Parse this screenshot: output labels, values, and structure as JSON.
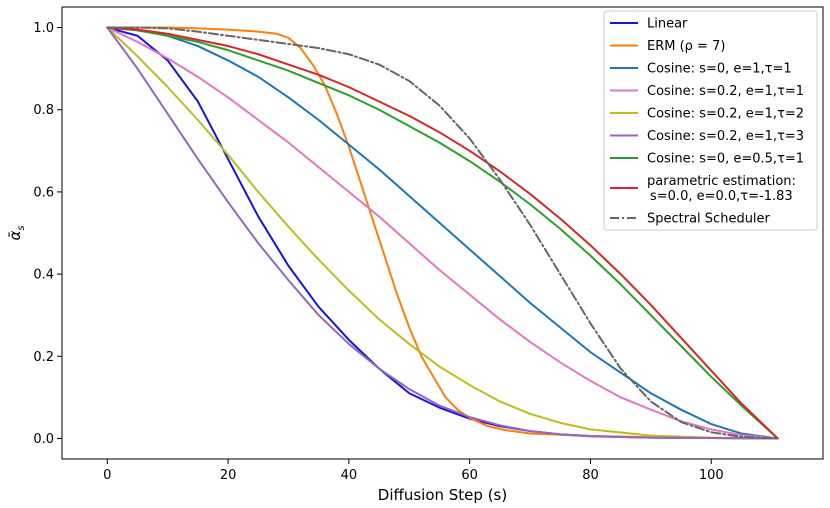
{
  "chart_data": {
    "type": "line",
    "title": "",
    "xlabel": "Diffusion Step (s)",
    "ylabel_main": "ᾱ",
    "ylabel_sub": "s",
    "xlim": [
      -7.5,
      118.5
    ],
    "ylim": [
      -0.05,
      1.05
    ],
    "xticks": [
      0,
      20,
      40,
      60,
      80,
      100
    ],
    "yticks": [
      0.0,
      0.2,
      0.4,
      0.6,
      0.8,
      1.0
    ],
    "xtick_labels": [
      "0",
      "20",
      "40",
      "60",
      "80",
      "100"
    ],
    "ytick_labels": [
      "0.0",
      "0.2",
      "0.4",
      "0.6",
      "0.8",
      "1.0"
    ],
    "legend_position": "top-right",
    "series": [
      {
        "name": "Linear",
        "legend_lines": [
          "Linear"
        ],
        "color": "#1515e0",
        "dash": "solid",
        "x": [
          0,
          5,
          10,
          15,
          20,
          25,
          30,
          35,
          40,
          45,
          50,
          55,
          60,
          65,
          70,
          75,
          80,
          90,
          100,
          111
        ],
        "y": [
          1.0,
          0.98,
          0.92,
          0.82,
          0.68,
          0.54,
          0.42,
          0.32,
          0.24,
          0.17,
          0.11,
          0.075,
          0.048,
          0.03,
          0.018,
          0.01,
          0.006,
          0.002,
          0.001,
          0.0
        ]
      },
      {
        "name": "ERM (ρ = 7)",
        "legend_lines": [
          "ERM (ρ = 7)"
        ],
        "color": "#ff7f0e",
        "dash": "solid",
        "x": [
          0,
          5,
          10,
          15,
          20,
          25,
          28,
          30,
          32,
          34,
          36,
          38,
          40,
          42,
          44,
          46,
          48,
          50,
          52,
          54,
          56,
          58,
          60,
          63,
          66,
          70,
          80,
          90,
          100,
          111
        ],
        "y": [
          1.0,
          1.0,
          1.0,
          0.998,
          0.995,
          0.99,
          0.985,
          0.975,
          0.95,
          0.91,
          0.86,
          0.79,
          0.71,
          0.62,
          0.53,
          0.44,
          0.35,
          0.27,
          0.2,
          0.15,
          0.1,
          0.07,
          0.05,
          0.03,
          0.02,
          0.012,
          0.006,
          0.003,
          0.001,
          0.0
        ]
      },
      {
        "name": "Cosine: s=0, e=1,τ=1",
        "legend_lines": [
          "Cosine: s=0, e=1,τ=1"
        ],
        "color": "#1f77b4",
        "dash": "solid",
        "x": [
          0,
          5,
          10,
          15,
          20,
          25,
          30,
          35,
          40,
          45,
          50,
          55,
          60,
          65,
          70,
          75,
          80,
          85,
          90,
          95,
          100,
          105,
          111
        ],
        "y": [
          1.0,
          0.995,
          0.98,
          0.955,
          0.92,
          0.88,
          0.83,
          0.775,
          0.715,
          0.655,
          0.59,
          0.525,
          0.46,
          0.395,
          0.33,
          0.27,
          0.21,
          0.16,
          0.11,
          0.07,
          0.035,
          0.012,
          0.0
        ]
      },
      {
        "name": "Cosine: s=0.2, e=1,τ=1",
        "legend_lines": [
          "Cosine: s=0.2, e=1,τ=1"
        ],
        "color": "#e377c2",
        "dash": "solid",
        "x": [
          0,
          5,
          10,
          15,
          20,
          25,
          30,
          35,
          40,
          45,
          50,
          55,
          60,
          65,
          70,
          75,
          80,
          85,
          90,
          95,
          100,
          105,
          111
        ],
        "y": [
          1.0,
          0.965,
          0.925,
          0.88,
          0.83,
          0.775,
          0.72,
          0.66,
          0.6,
          0.54,
          0.475,
          0.41,
          0.35,
          0.29,
          0.235,
          0.185,
          0.14,
          0.1,
          0.07,
          0.042,
          0.022,
          0.008,
          0.0
        ]
      },
      {
        "name": "Cosine: s=0.2, e=1,τ=2",
        "legend_lines": [
          "Cosine: s=0.2, e=1,τ=2"
        ],
        "color": "#bcbd22",
        "dash": "solid",
        "x": [
          0,
          5,
          10,
          15,
          20,
          25,
          30,
          35,
          40,
          45,
          50,
          55,
          60,
          65,
          70,
          75,
          80,
          90,
          100,
          111
        ],
        "y": [
          1.0,
          0.93,
          0.855,
          0.775,
          0.69,
          0.6,
          0.515,
          0.435,
          0.36,
          0.29,
          0.23,
          0.175,
          0.13,
          0.09,
          0.06,
          0.038,
          0.022,
          0.007,
          0.002,
          0.0
        ]
      },
      {
        "name": "Cosine: s=0.2, e=1,τ=3",
        "legend_lines": [
          "Cosine: s=0.2, e=1,τ=3"
        ],
        "color": "#9467bd",
        "dash": "solid",
        "x": [
          0,
          5,
          10,
          15,
          20,
          25,
          30,
          35,
          40,
          45,
          50,
          55,
          60,
          65,
          70,
          75,
          80,
          90,
          100,
          111
        ],
        "y": [
          1.0,
          0.9,
          0.79,
          0.68,
          0.575,
          0.475,
          0.385,
          0.3,
          0.23,
          0.17,
          0.12,
          0.08,
          0.052,
          0.032,
          0.018,
          0.01,
          0.005,
          0.002,
          0.001,
          0.0
        ]
      },
      {
        "name": "Cosine: s=0, e=0.5,τ=1",
        "legend_lines": [
          "Cosine: s=0, e=0.5,τ=1"
        ],
        "color": "#2ca02c",
        "dash": "solid",
        "x": [
          0,
          5,
          10,
          15,
          20,
          25,
          30,
          35,
          40,
          45,
          50,
          55,
          60,
          65,
          70,
          75,
          80,
          85,
          90,
          95,
          100,
          105,
          111
        ],
        "y": [
          1.0,
          0.993,
          0.98,
          0.965,
          0.945,
          0.92,
          0.895,
          0.865,
          0.835,
          0.8,
          0.76,
          0.72,
          0.675,
          0.625,
          0.57,
          0.51,
          0.445,
          0.375,
          0.3,
          0.225,
          0.15,
          0.08,
          0.0
        ]
      },
      {
        "name": "parametric estimation: s=0.0, e=0.0,τ=-1.83",
        "legend_lines": [
          "parametric estimation:",
          "s=0.0, e=0.0,τ=-1.83"
        ],
        "color": "#d62728",
        "dash": "solid",
        "x": [
          0,
          5,
          10,
          15,
          20,
          25,
          30,
          35,
          40,
          45,
          50,
          55,
          60,
          65,
          70,
          75,
          80,
          85,
          90,
          95,
          100,
          105,
          111
        ],
        "y": [
          1.0,
          0.995,
          0.985,
          0.97,
          0.955,
          0.935,
          0.91,
          0.885,
          0.855,
          0.82,
          0.785,
          0.745,
          0.7,
          0.65,
          0.595,
          0.535,
          0.47,
          0.4,
          0.325,
          0.245,
          0.165,
          0.085,
          0.0
        ]
      },
      {
        "name": "Spectral Scheduler",
        "legend_lines": [
          "Spectral Scheduler"
        ],
        "color": "#666666",
        "dash": "dashdot",
        "x": [
          0,
          5,
          10,
          15,
          20,
          25,
          30,
          35,
          40,
          45,
          50,
          55,
          60,
          65,
          70,
          75,
          80,
          85,
          90,
          95,
          100,
          105,
          111
        ],
        "y": [
          1.0,
          1.0,
          0.998,
          0.99,
          0.98,
          0.97,
          0.96,
          0.95,
          0.935,
          0.91,
          0.87,
          0.81,
          0.73,
          0.63,
          0.52,
          0.4,
          0.28,
          0.17,
          0.09,
          0.04,
          0.015,
          0.004,
          0.0
        ]
      }
    ]
  }
}
